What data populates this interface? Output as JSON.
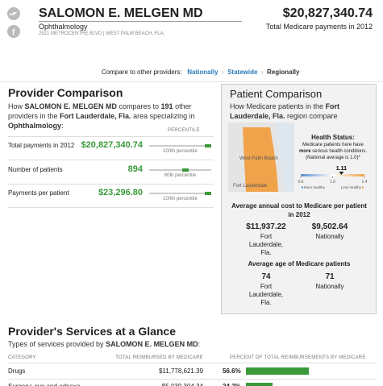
{
  "header": {
    "name": "SALOMON E. MELGEN MD",
    "specialty": "Ophthalmology",
    "address": "2521 METROCENTRE BLVD | WEST PALM BEACH, FLA.",
    "total": "$20,827,340.74",
    "total_label": "Total Medicare payments in 2012"
  },
  "compare": {
    "label": "Compare to other providers:",
    "options": [
      "Nationally",
      "Statewide",
      "Regionally"
    ]
  },
  "provider_comparison": {
    "title": "Provider Comparison",
    "intro": [
      {
        "text": "How "
      },
      {
        "text": "SALOMON E. MELGEN MD",
        "bold": true
      },
      {
        "text": " compares to "
      },
      {
        "text": "191",
        "bold": true
      },
      {
        "text": " other providers in the "
      },
      {
        "text": "Fort Lauderdale, Fla.",
        "bold": true
      },
      {
        "text": " area specializing in "
      },
      {
        "text": "Ophthalmology",
        "bold": true
      },
      {
        "text": ":"
      }
    ],
    "percentile_header": "PERCENTILE",
    "rows": [
      {
        "label": "Total payments in 2012",
        "value": "$20,827,340.74",
        "percentile": {
          "value": 100,
          "label": "100th percentile"
        }
      },
      {
        "label": "Number of patients",
        "value": "894",
        "percentile": {
          "value": 60,
          "label": "60th percentile"
        }
      },
      {
        "label": "Payments per patient",
        "value": "$23,296.80",
        "percentile": {
          "value": 100,
          "label": "100th percentile"
        }
      }
    ]
  },
  "patient_comparison": {
    "title": "Patient Comparison",
    "intro": [
      {
        "text": "How Medicare patients in the "
      },
      {
        "text": "Fort Lauderdale, Fla.",
        "bold": true
      },
      {
        "text": " region compare nationally:"
      }
    ],
    "map_labels": [
      "West Palm Beach",
      "Fort Lauderdale"
    ],
    "health_status": {
      "title": "Health Status:",
      "description": [
        {
          "text": "Medicare patients here have "
        },
        {
          "text": "more",
          "bold": true
        },
        {
          "text": " serious health conditions. (National average is 1.0)*"
        }
      ],
      "value": 1.11,
      "xlim": [
        0.6,
        1.4
      ],
      "xticks": [
        0.6,
        {
          "value": 1,
          "label": "1.0"
        },
        1.4
      ],
      "more_healthy": "More healthy",
      "less_healthy": "Less healthy"
    },
    "cost": {
      "title": "Average annual cost to Medicare per patient in 2012",
      "items": [
        {
          "value": "$11,937.22",
          "label": "Fort Lauderdale, Fla."
        },
        {
          "value": "$9,502.64",
          "label": "Nationally"
        }
      ]
    },
    "age": {
      "title": "Average age of Medicare patients",
      "items": [
        {
          "value": 74,
          "label": "Fort Lauderdale, Fla."
        },
        {
          "value": 71,
          "label": "Nationally"
        }
      ]
    }
  },
  "services": {
    "title": "Provider's Services at a Glance",
    "intro": [
      {
        "text": "Types of services provided by "
      },
      {
        "text": "SALOMON E. MELGEN MD",
        "bold": true
      },
      {
        "text": ":"
      }
    ],
    "columns": [
      "CATEGORY",
      "TOTAL REIMBURSED BY MEDICARE",
      "PERCENT OF TOTAL REIMBURSEMENTS BY MEDICARE"
    ],
    "rows": [
      {
        "category": "Drugs",
        "total": "$11,778,621.39",
        "percent": {
          "value": 56.6,
          "label": "56.6%"
        }
      },
      {
        "category": "Surgery: eye and adnexa",
        "total": "$5,039,304.34",
        "percent": {
          "value": 24.2,
          "label": "24.2%"
        }
      }
    ]
  }
}
